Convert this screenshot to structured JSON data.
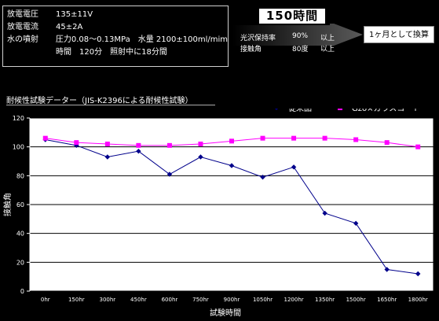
{
  "specs": {
    "rows": [
      {
        "label": "放電電圧",
        "value": "135±11V"
      },
      {
        "label": "放電電流",
        "value": "45±2A"
      },
      {
        "label": "水の噴射",
        "v1": "圧力0.08〜0.13MPa",
        "v2": "水量 2100±100ml/mim"
      }
    ],
    "row4": {
      "v1": "時間　120分",
      "v2": "照射中に18分間"
    }
  },
  "summary": {
    "hours": "150時間",
    "gloss_label": "光沢保持率",
    "gloss_value": "90%",
    "gloss_suffix": "以上",
    "angle_label": "接触角",
    "angle_value": "80度",
    "angle_suffix": "以上",
    "result": "1ヶ月として換算"
  },
  "chart_title": "耐候性試験データー（JIS-K2396による耐候性試験）",
  "chart_data": {
    "type": "line",
    "title": "",
    "xlabel": "試験時間",
    "ylabel": "接触角",
    "categories": [
      "0hr",
      "150hr",
      "300hr",
      "450hr",
      "600hr",
      "750hr",
      "900hr",
      "1050hr",
      "1200hr",
      "1350hr",
      "1500hr",
      "1650hr",
      "1800hr"
    ],
    "ylim": [
      0,
      120
    ],
    "yticks": [
      0,
      20,
      40,
      60,
      80,
      100,
      120
    ],
    "grid": true,
    "legend": "top-right",
    "series": [
      {
        "name": "従来品",
        "color": "#00008b",
        "marker": "diamond",
        "values": [
          105,
          101,
          93,
          97,
          81,
          93,
          87,
          79,
          86,
          54,
          47,
          15,
          12
        ]
      },
      {
        "name": "Gzo×ガラスコート",
        "color": "#ff00ff",
        "marker": "square",
        "values": [
          106,
          103,
          102,
          101,
          101,
          102,
          104,
          106,
          106,
          106,
          105,
          103,
          100
        ]
      }
    ]
  }
}
